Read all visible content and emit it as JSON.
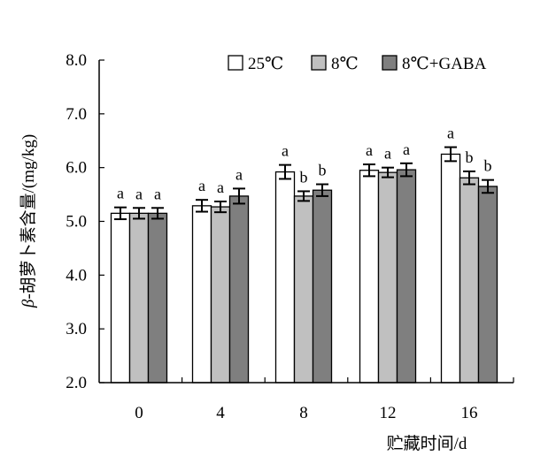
{
  "chart_data": {
    "type": "bar",
    "title": "",
    "xlabel": "贮藏时间/d",
    "ylabel_greek": "β",
    "ylabel_text": "-胡萝卜素含量/(mg/kg)",
    "ylim": [
      2.0,
      8.0
    ],
    "yticks": [
      "2.0",
      "3.0",
      "4.0",
      "5.0",
      "6.0",
      "7.0",
      "8.0"
    ],
    "ytick_values": [
      2,
      3,
      4,
      5,
      6,
      7,
      8
    ],
    "categories": [
      "0",
      "4",
      "8",
      "12",
      "16"
    ],
    "legend_position": "top-right",
    "grid": false,
    "series": [
      {
        "name": "25℃",
        "color": "#ffffff",
        "values": [
          5.15,
          5.29,
          5.92,
          5.95,
          6.25
        ],
        "errors": [
          0.11,
          0.11,
          0.13,
          0.11,
          0.13
        ],
        "labels": [
          "a",
          "a",
          "a",
          "a",
          "a"
        ]
      },
      {
        "name": "8℃",
        "color": "#c0c0c0",
        "values": [
          5.15,
          5.27,
          5.47,
          5.91,
          5.81
        ],
        "errors": [
          0.1,
          0.1,
          0.09,
          0.09,
          0.12
        ],
        "labels": [
          "a",
          "a",
          "b",
          "a",
          "b"
        ]
      },
      {
        "name": "8℃+GABA",
        "color": "#7f7f7f",
        "values": [
          5.15,
          5.47,
          5.58,
          5.96,
          5.65
        ],
        "errors": [
          0.1,
          0.14,
          0.11,
          0.12,
          0.12
        ],
        "labels": [
          "a",
          "a",
          "b",
          "a",
          "b"
        ]
      }
    ]
  }
}
